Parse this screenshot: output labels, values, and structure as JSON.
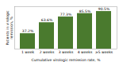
{
  "chart_data": {
    "type": "bar",
    "categories": [
      "1 week",
      "2 weeks",
      "3 weeks",
      "4 weeks",
      "≥5 weeks"
    ],
    "values": [
      37.2,
      63.6,
      77.3,
      85.5,
      90.5
    ],
    "value_labels": [
      "37.2%",
      "63.6%",
      "77.3%",
      "85.5%",
      "90.5%"
    ],
    "data_labels": true,
    "color": "#4a7a2e",
    "xlabel": "Cumulative virologic remission rate, %",
    "ylabel": "Patients in virologic\nremission, %",
    "ylim": [
      0,
      102
    ],
    "yticks": [],
    "tick_labels": "x"
  }
}
